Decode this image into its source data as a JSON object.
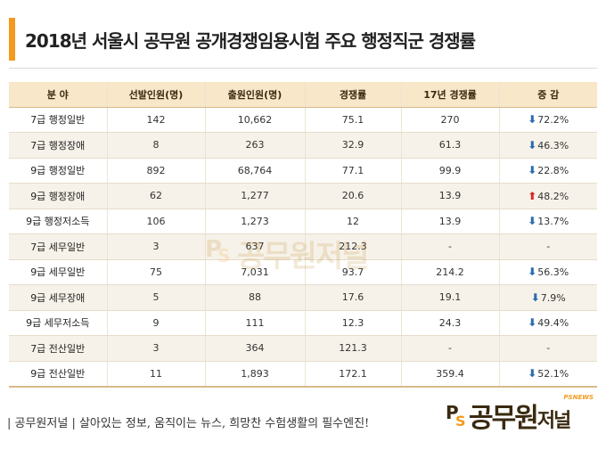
{
  "title": "2018년 서울시 공무원 공개경쟁임용시험 주요 행정직군 경쟁률",
  "table": {
    "headers": [
      "분 야",
      "선발인원(명)",
      "출원인원(명)",
      "경쟁률",
      "17년 경쟁률",
      "증 감"
    ],
    "rows": [
      {
        "category": "7급 행정일반",
        "selected": "142",
        "applicants": "10,662",
        "ratio": "75.1",
        "ratio17": "270",
        "change": "72.2%",
        "direction": "down"
      },
      {
        "category": "7급 행정장애",
        "selected": "8",
        "applicants": "263",
        "ratio": "32.9",
        "ratio17": "61.3",
        "change": "46.3%",
        "direction": "down"
      },
      {
        "category": "9급 행정일반",
        "selected": "892",
        "applicants": "68,764",
        "ratio": "77.1",
        "ratio17": "99.9",
        "change": "22.8%",
        "direction": "down"
      },
      {
        "category": "9급 행정장애",
        "selected": "62",
        "applicants": "1,277",
        "ratio": "20.6",
        "ratio17": "13.9",
        "change": "48.2%",
        "direction": "up"
      },
      {
        "category": "9급 행정저소득",
        "selected": "106",
        "applicants": "1,273",
        "ratio": "12",
        "ratio17": "13.9",
        "change": "13.7%",
        "direction": "down"
      },
      {
        "category": "7급 세무일반",
        "selected": "3",
        "applicants": "637",
        "ratio": "212.3",
        "ratio17": "-",
        "change": "-",
        "direction": "none"
      },
      {
        "category": "9급 세무일반",
        "selected": "75",
        "applicants": "7,031",
        "ratio": "93.7",
        "ratio17": "214.2",
        "change": "56.3%",
        "direction": "down"
      },
      {
        "category": "9급 세무장애",
        "selected": "5",
        "applicants": "88",
        "ratio": "17.6",
        "ratio17": "19.1",
        "change": "7.9%",
        "direction": "down"
      },
      {
        "category": "9급 세무저소득",
        "selected": "9",
        "applicants": "111",
        "ratio": "12.3",
        "ratio17": "24.3",
        "change": "49.4%",
        "direction": "down"
      },
      {
        "category": "7급 전산일반",
        "selected": "3",
        "applicants": "364",
        "ratio": "121.3",
        "ratio17": "-",
        "change": "-",
        "direction": "none"
      },
      {
        "category": "9급 전산일반",
        "selected": "11",
        "applicants": "1,893",
        "ratio": "172.1",
        "ratio17": "359.4",
        "change": "52.1%",
        "direction": "down"
      }
    ]
  },
  "footer": {
    "tagline": "| 공무원저널 | 살아있는 정보, 움직이는 뉴스, 희망찬 수험생활의 필수엔진!"
  },
  "logo": {
    "brand": "공무원",
    "brand_sub": "저널",
    "brand_en": "PSNEWS",
    "mark": "PS"
  },
  "watermark": {
    "text": "공무원저널"
  },
  "colors": {
    "accent": "#f39a1e",
    "header_bg": "#f8e7c8",
    "arrow_down": "#2b6cb0",
    "arrow_up": "#d62a2a"
  },
  "icons": {
    "down": "arrow-down-icon",
    "up": "arrow-up-icon"
  }
}
